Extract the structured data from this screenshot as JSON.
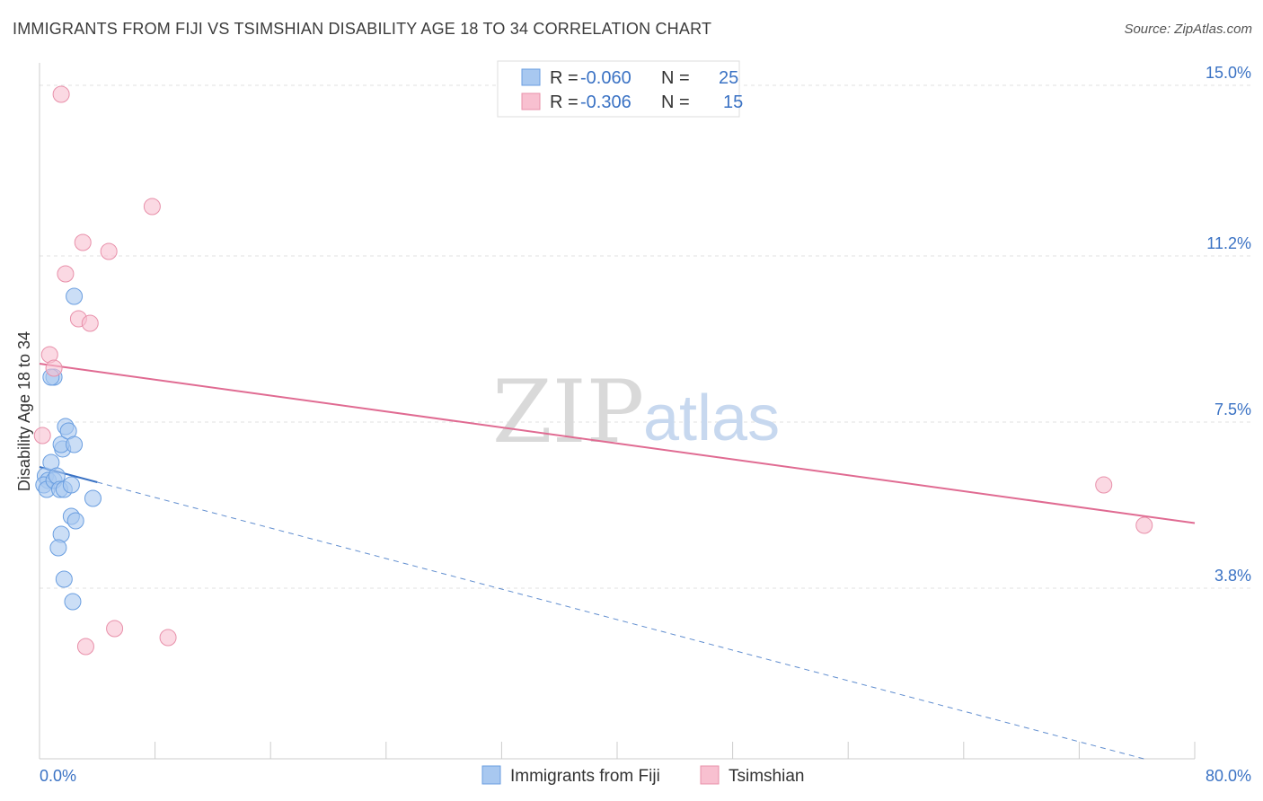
{
  "title": "IMMIGRANTS FROM FIJI VS TSIMSHIAN DISABILITY AGE 18 TO 34 CORRELATION CHART",
  "source": "Source: ZipAtlas.com",
  "watermark": {
    "zip": "ZIP",
    "atlas": "atlas"
  },
  "legend": {
    "rows": [
      {
        "r_label": "R =",
        "r_value": "-0.060",
        "n_label": "N =",
        "n_value": "25",
        "color": "#a8c8f0",
        "stroke": "#6a9ee0"
      },
      {
        "r_label": "R =",
        "r_value": "-0.306",
        "n_label": "N =",
        "n_value": "15",
        "color": "#f8c0d0",
        "stroke": "#e890aa"
      }
    ]
  },
  "bottom_legend": [
    "Immigrants from Fiji",
    "Tsimshian"
  ],
  "chart_data": {
    "type": "scatter",
    "title": "IMMIGRANTS FROM FIJI VS TSIMSHIAN DISABILITY AGE 18 TO 34 CORRELATION CHART",
    "xlabel": "",
    "ylabel": "Disability Age 18 to 34",
    "xlim": [
      0,
      80
    ],
    "ylim": [
      0,
      15.5
    ],
    "x_tick_labels": [
      "0.0%",
      "80.0%"
    ],
    "y_ticks": [
      3.8,
      7.5,
      11.2,
      15.0
    ],
    "y_tick_labels": [
      "3.8%",
      "7.5%",
      "11.2%",
      "15.0%"
    ],
    "grid": true,
    "legend_position": "top-center",
    "series": [
      {
        "name": "Immigrants from Fiji",
        "color": "#a8c8f0",
        "stroke": "#6a9ee0",
        "trend_color": "#3a72c4",
        "x": [
          0.4,
          0.6,
          0.3,
          0.5,
          0.8,
          1.0,
          1.2,
          1.4,
          1.6,
          1.5,
          1.8,
          2.0,
          1.7,
          2.2,
          2.4,
          3.7,
          2.2,
          1.5,
          1.0,
          0.8,
          1.3,
          2.4,
          1.7,
          2.3,
          2.5
        ],
        "y": [
          6.3,
          6.2,
          6.1,
          6.0,
          6.6,
          6.2,
          6.3,
          6.0,
          6.9,
          7.0,
          7.4,
          7.3,
          6.0,
          6.1,
          7.0,
          5.8,
          5.4,
          5.0,
          8.5,
          8.5,
          4.7,
          10.3,
          4.0,
          3.5,
          5.3
        ],
        "trend": {
          "x": [
            0,
            80
          ],
          "y": [
            6.5,
            -0.3
          ]
        }
      },
      {
        "name": "Tsimshian",
        "color": "#f8c0d0",
        "stroke": "#e890aa",
        "trend_color": "#e06b92",
        "x": [
          1.5,
          7.8,
          3.0,
          4.8,
          1.8,
          2.7,
          3.5,
          0.7,
          1.0,
          0.2,
          73.7,
          76.5,
          5.2,
          3.2,
          8.9
        ],
        "y": [
          14.8,
          12.3,
          11.5,
          11.3,
          10.8,
          9.8,
          9.7,
          9.0,
          8.7,
          7.2,
          6.1,
          5.2,
          2.9,
          2.5,
          2.7
        ],
        "trend": {
          "x": [
            0,
            80
          ],
          "y": [
            8.8,
            5.25
          ]
        }
      }
    ]
  }
}
